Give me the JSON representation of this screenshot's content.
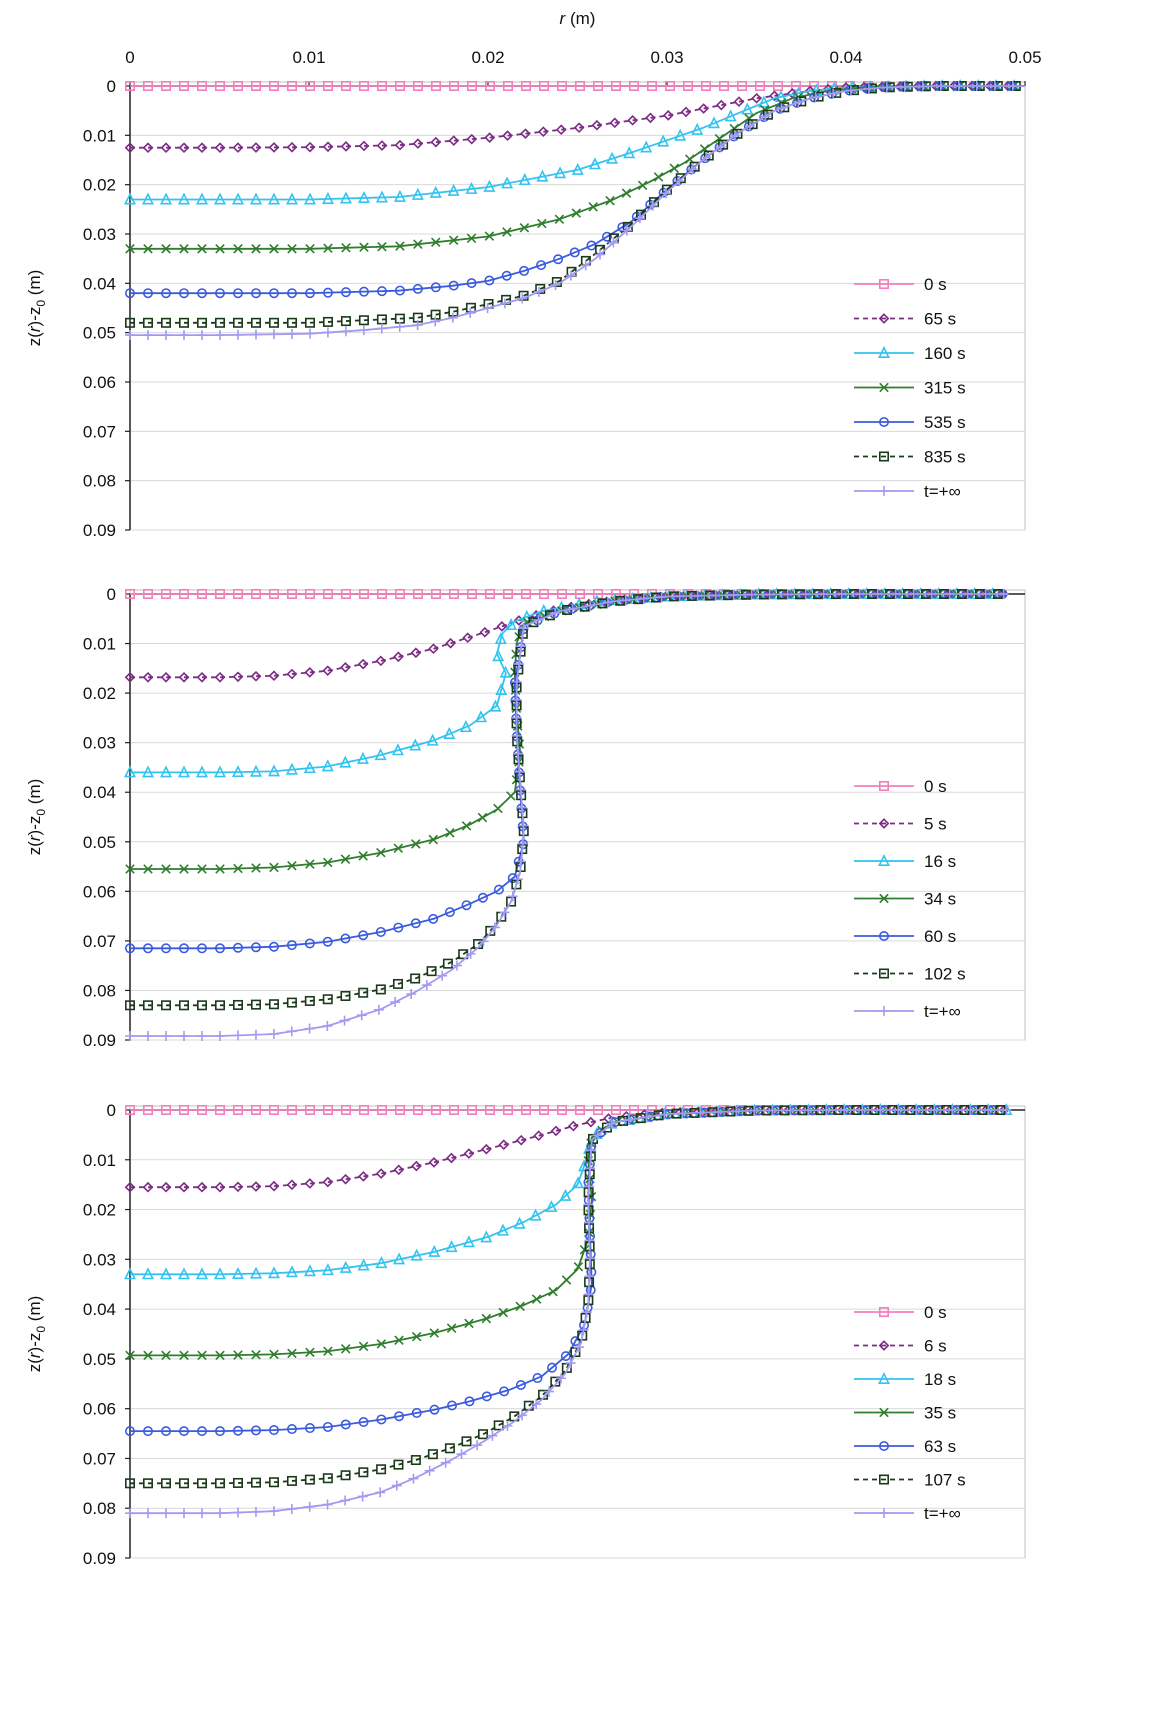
{
  "figure": {
    "x_axis_title_main": "r",
    "x_axis_title_unit": " (m)",
    "y_axis_title_prefix": "z(",
    "y_axis_title_r": "r",
    "y_axis_title_mid": ")-z",
    "y_axis_title_sub": "0",
    "y_axis_title_unit": " (m)",
    "x_tick_labels": [
      "0",
      "0.01",
      "0.02",
      "0.03",
      "0.04",
      "0.05"
    ],
    "y_tick_labels": [
      "0",
      "0.01",
      "0.02",
      "0.03",
      "0.04",
      "0.05",
      "0.06",
      "0.07",
      "0.08",
      "0.09"
    ]
  },
  "styles": {
    "series_colors": [
      "#F27FBC",
      "#7B2C83",
      "#33C3F0",
      "#2F7D2E",
      "#3A5BE0",
      "#1A3B1A",
      "#A39AF2"
    ],
    "series_markers": [
      "square",
      "diamond",
      "triangle",
      "x",
      "circle",
      "square",
      "plus"
    ],
    "series_dashed": [
      false,
      true,
      false,
      false,
      false,
      true,
      false
    ],
    "gridline_color": "#d9d9d9"
  },
  "chart_data": [
    {
      "type": "line",
      "xlabel": "r (m)",
      "ylabel": "z(r)-z0 (m)",
      "xlim": [
        0,
        0.05
      ],
      "ylim": [
        0,
        0.09
      ],
      "y_inverted": true,
      "grid": true,
      "legend_position": "right",
      "series": [
        {
          "name": "0 s",
          "x": [
            0,
            0.01,
            0.02,
            0.03,
            0.04,
            0.05
          ],
          "y": [
            0,
            0,
            0,
            0,
            0,
            0
          ]
        },
        {
          "name": "65 s",
          "x": [
            0,
            0.005,
            0.01,
            0.015,
            0.02,
            0.025,
            0.03,
            0.035,
            0.038,
            0.04,
            0.045,
            0.05
          ],
          "y": [
            0.0125,
            0.0125,
            0.0124,
            0.012,
            0.0105,
            0.0085,
            0.006,
            0.0025,
            0.001,
            0.0003,
            0,
            0
          ]
        },
        {
          "name": "160 s",
          "x": [
            0,
            0.005,
            0.01,
            0.015,
            0.02,
            0.025,
            0.028,
            0.03,
            0.032,
            0.034,
            0.036,
            0.038,
            0.04,
            0.045,
            0.05
          ],
          "y": [
            0.023,
            0.023,
            0.023,
            0.0225,
            0.0205,
            0.017,
            0.0135,
            0.011,
            0.0085,
            0.0055,
            0.0025,
            0.001,
            0.0003,
            0,
            0
          ]
        },
        {
          "name": "315 s",
          "x": [
            0,
            0.005,
            0.01,
            0.015,
            0.02,
            0.024,
            0.027,
            0.029,
            0.031,
            0.033,
            0.035,
            0.037,
            0.039,
            0.041,
            0.045,
            0.05
          ],
          "y": [
            0.033,
            0.033,
            0.033,
            0.0325,
            0.0305,
            0.027,
            0.023,
            0.0195,
            0.0155,
            0.0105,
            0.0055,
            0.0025,
            0.001,
            0.0003,
            0,
            0
          ]
        },
        {
          "name": "535 s",
          "x": [
            0,
            0.005,
            0.01,
            0.015,
            0.018,
            0.02,
            0.022,
            0.024,
            0.026,
            0.028,
            0.03,
            0.032,
            0.034,
            0.036,
            0.038,
            0.04,
            0.042,
            0.045,
            0.05
          ],
          "y": [
            0.042,
            0.042,
            0.042,
            0.0415,
            0.0405,
            0.0395,
            0.0375,
            0.035,
            0.032,
            0.0275,
            0.021,
            0.015,
            0.0095,
            0.005,
            0.0025,
            0.001,
            0.0003,
            0,
            0
          ]
        },
        {
          "name": "835 s",
          "x": [
            0,
            0.005,
            0.01,
            0.013,
            0.016,
            0.018,
            0.02,
            0.022,
            0.024,
            0.026,
            0.028,
            0.03,
            0.032,
            0.034,
            0.036,
            0.038,
            0.04,
            0.042,
            0.045,
            0.05
          ],
          "y": [
            0.048,
            0.048,
            0.048,
            0.0475,
            0.047,
            0.0458,
            0.0442,
            0.0425,
            0.0395,
            0.034,
            0.028,
            0.021,
            0.015,
            0.0095,
            0.005,
            0.0025,
            0.001,
            0.0003,
            0,
            0
          ]
        },
        {
          "name": "t=+∞",
          "x": [
            0,
            0.005,
            0.01,
            0.013,
            0.016,
            0.018,
            0.02,
            0.022,
            0.024,
            0.026,
            0.028,
            0.03,
            0.032,
            0.034,
            0.036,
            0.038,
            0.04,
            0.042,
            0.045,
            0.05
          ],
          "y": [
            0.0505,
            0.0505,
            0.0502,
            0.0495,
            0.0485,
            0.047,
            0.045,
            0.043,
            0.04,
            0.035,
            0.0285,
            0.0215,
            0.015,
            0.0095,
            0.005,
            0.0025,
            0.001,
            0.0003,
            0,
            0
          ]
        }
      ]
    },
    {
      "type": "line",
      "xlabel": "",
      "ylabel": "z(r)-z0 (m)",
      "xlim": [
        0,
        0.05
      ],
      "ylim": [
        0,
        0.09
      ],
      "y_inverted": true,
      "grid": true,
      "legend_position": "right",
      "series": [
        {
          "name": "0 s",
          "x": [
            0,
            0.01,
            0.02,
            0.03,
            0.04,
            0.049
          ],
          "y": [
            0,
            0,
            0,
            0,
            0,
            0
          ]
        },
        {
          "name": "5 s",
          "x": [
            0,
            0.005,
            0.008,
            0.011,
            0.014,
            0.017,
            0.02,
            0.022,
            0.024,
            0.026,
            0.028,
            0.03,
            0.035,
            0.04,
            0.049
          ],
          "y": [
            0.0168,
            0.0168,
            0.0165,
            0.0155,
            0.0135,
            0.011,
            0.0075,
            0.005,
            0.003,
            0.0018,
            0.001,
            0.0005,
            0.0001,
            0,
            0
          ]
        },
        {
          "name": "16 s",
          "x": [
            0,
            0.005,
            0.008,
            0.011,
            0.014,
            0.017,
            0.019,
            0.0205,
            0.021,
            0.0205,
            0.0208,
            0.0215,
            0.023,
            0.026,
            0.03,
            0.035,
            0.04,
            0.049
          ],
          "y": [
            0.036,
            0.036,
            0.0358,
            0.0348,
            0.0325,
            0.0295,
            0.0265,
            0.0225,
            0.016,
            0.012,
            0.008,
            0.0055,
            0.0035,
            0.0015,
            0.0005,
            0.0001,
            0,
            0
          ]
        },
        {
          "name": "34 s",
          "x": [
            0,
            0.005,
            0.008,
            0.011,
            0.014,
            0.017,
            0.019,
            0.0205,
            0.0215,
            0.0218,
            0.0216,
            0.0215,
            0.0216,
            0.022,
            0.024,
            0.027,
            0.03,
            0.035,
            0.04,
            0.049
          ],
          "y": [
            0.0555,
            0.0555,
            0.0552,
            0.0542,
            0.0522,
            0.0495,
            0.0465,
            0.0435,
            0.04,
            0.032,
            0.024,
            0.016,
            0.01,
            0.006,
            0.0035,
            0.0015,
            0.0005,
            0.0001,
            0,
            0
          ]
        },
        {
          "name": "60 s",
          "x": [
            0,
            0.005,
            0.008,
            0.011,
            0.014,
            0.017,
            0.019,
            0.0205,
            0.0215,
            0.022,
            0.0218,
            0.0216,
            0.0215,
            0.0218,
            0.022,
            0.024,
            0.027,
            0.03,
            0.035,
            0.04,
            0.049
          ],
          "y": [
            0.0715,
            0.0715,
            0.0712,
            0.0702,
            0.0682,
            0.0655,
            0.0625,
            0.06,
            0.057,
            0.05,
            0.04,
            0.028,
            0.018,
            0.012,
            0.0065,
            0.0035,
            0.0015,
            0.0005,
            0.0001,
            0,
            0
          ]
        },
        {
          "name": "102 s",
          "x": [
            0,
            0.005,
            0.008,
            0.011,
            0.014,
            0.016,
            0.018,
            0.0195,
            0.0205,
            0.0213,
            0.0218,
            0.022,
            0.0218,
            0.0216,
            0.0216,
            0.022,
            0.024,
            0.027,
            0.03,
            0.035,
            0.04,
            0.049
          ],
          "y": [
            0.083,
            0.083,
            0.0828,
            0.0818,
            0.0798,
            0.0775,
            0.0742,
            0.0705,
            0.0665,
            0.062,
            0.056,
            0.048,
            0.038,
            0.028,
            0.018,
            0.0065,
            0.0035,
            0.0015,
            0.0005,
            0.0001,
            0,
            0
          ]
        },
        {
          "name": "t=+∞",
          "x": [
            0,
            0.005,
            0.008,
            0.011,
            0.014,
            0.016,
            0.018,
            0.0195,
            0.0205,
            0.0213,
            0.0218,
            0.022,
            0.0218,
            0.0216,
            0.0216,
            0.022,
            0.024,
            0.027,
            0.03,
            0.035,
            0.04,
            0.049
          ],
          "y": [
            0.0892,
            0.0892,
            0.0888,
            0.0872,
            0.0838,
            0.0802,
            0.0758,
            0.0712,
            0.0668,
            0.062,
            0.056,
            0.048,
            0.038,
            0.028,
            0.018,
            0.0065,
            0.0035,
            0.0015,
            0.0005,
            0.0001,
            0,
            0
          ]
        }
      ]
    },
    {
      "type": "line",
      "xlabel": "",
      "ylabel": "z(r)-z0 (m)",
      "xlim": [
        0,
        0.05
      ],
      "ylim": [
        0,
        0.09
      ],
      "y_inverted": true,
      "grid": true,
      "legend_position": "right",
      "series": [
        {
          "name": "0 s",
          "x": [
            0,
            0.01,
            0.02,
            0.03,
            0.04,
            0.049
          ],
          "y": [
            0,
            0,
            0,
            0,
            0,
            0
          ]
        },
        {
          "name": "6 s",
          "x": [
            0,
            0.005,
            0.008,
            0.011,
            0.014,
            0.017,
            0.02,
            0.023,
            0.025,
            0.027,
            0.03,
            0.035,
            0.04,
            0.049
          ],
          "y": [
            0.0155,
            0.0155,
            0.0153,
            0.0145,
            0.0128,
            0.0105,
            0.0078,
            0.005,
            0.003,
            0.0015,
            0.0005,
            0.0001,
            0,
            0
          ]
        },
        {
          "name": "18 s",
          "x": [
            0,
            0.005,
            0.008,
            0.011,
            0.014,
            0.017,
            0.02,
            0.022,
            0.0238,
            0.025,
            0.0255,
            0.0258,
            0.027,
            0.03,
            0.035,
            0.04,
            0.049
          ],
          "y": [
            0.033,
            0.033,
            0.0328,
            0.0322,
            0.0308,
            0.0285,
            0.0255,
            0.0225,
            0.019,
            0.015,
            0.01,
            0.0055,
            0.0025,
            0.0008,
            0.0001,
            0,
            0
          ]
        },
        {
          "name": "35 s",
          "x": [
            0,
            0.005,
            0.008,
            0.011,
            0.014,
            0.017,
            0.02,
            0.022,
            0.0238,
            0.025,
            0.0256,
            0.0258,
            0.0256,
            0.0258,
            0.027,
            0.03,
            0.035,
            0.04,
            0.049
          ],
          "y": [
            0.0493,
            0.0493,
            0.0491,
            0.0485,
            0.047,
            0.0448,
            0.0418,
            0.0392,
            0.0362,
            0.032,
            0.026,
            0.018,
            0.01,
            0.0055,
            0.0025,
            0.0008,
            0.0001,
            0,
            0
          ]
        },
        {
          "name": "63 s",
          "x": [
            0,
            0.005,
            0.008,
            0.011,
            0.014,
            0.017,
            0.019,
            0.0212,
            0.023,
            0.0245,
            0.0254,
            0.0258,
            0.0257,
            0.0256,
            0.0258,
            0.027,
            0.03,
            0.035,
            0.04,
            0.049
          ],
          "y": [
            0.0645,
            0.0645,
            0.0643,
            0.0637,
            0.0622,
            0.0602,
            0.0585,
            0.0562,
            0.0535,
            0.049,
            0.043,
            0.035,
            0.025,
            0.015,
            0.006,
            0.0025,
            0.0008,
            0.0001,
            0,
            0
          ]
        },
        {
          "name": "107 s",
          "x": [
            0,
            0.005,
            0.008,
            0.011,
            0.014,
            0.016,
            0.018,
            0.0198,
            0.0215,
            0.023,
            0.0243,
            0.0252,
            0.0256,
            0.0257,
            0.0256,
            0.0258,
            0.027,
            0.03,
            0.035,
            0.04,
            0.049
          ],
          "y": [
            0.075,
            0.075,
            0.0748,
            0.074,
            0.0722,
            0.0703,
            0.0678,
            0.065,
            0.0615,
            0.0575,
            0.0525,
            0.0465,
            0.039,
            0.03,
            0.018,
            0.006,
            0.0025,
            0.0008,
            0.0001,
            0,
            0
          ]
        },
        {
          "name": "t=+∞",
          "x": [
            0,
            0.005,
            0.008,
            0.011,
            0.014,
            0.016,
            0.018,
            0.0198,
            0.0215,
            0.023,
            0.0243,
            0.0252,
            0.0256,
            0.0257,
            0.0256,
            0.0258,
            0.027,
            0.03,
            0.035,
            0.04,
            0.049
          ],
          "y": [
            0.081,
            0.081,
            0.0806,
            0.0793,
            0.0768,
            0.0738,
            0.0702,
            0.0665,
            0.0625,
            0.0582,
            0.053,
            0.0468,
            0.039,
            0.03,
            0.018,
            0.006,
            0.0025,
            0.0008,
            0.0001,
            0,
            0
          ]
        }
      ]
    }
  ]
}
